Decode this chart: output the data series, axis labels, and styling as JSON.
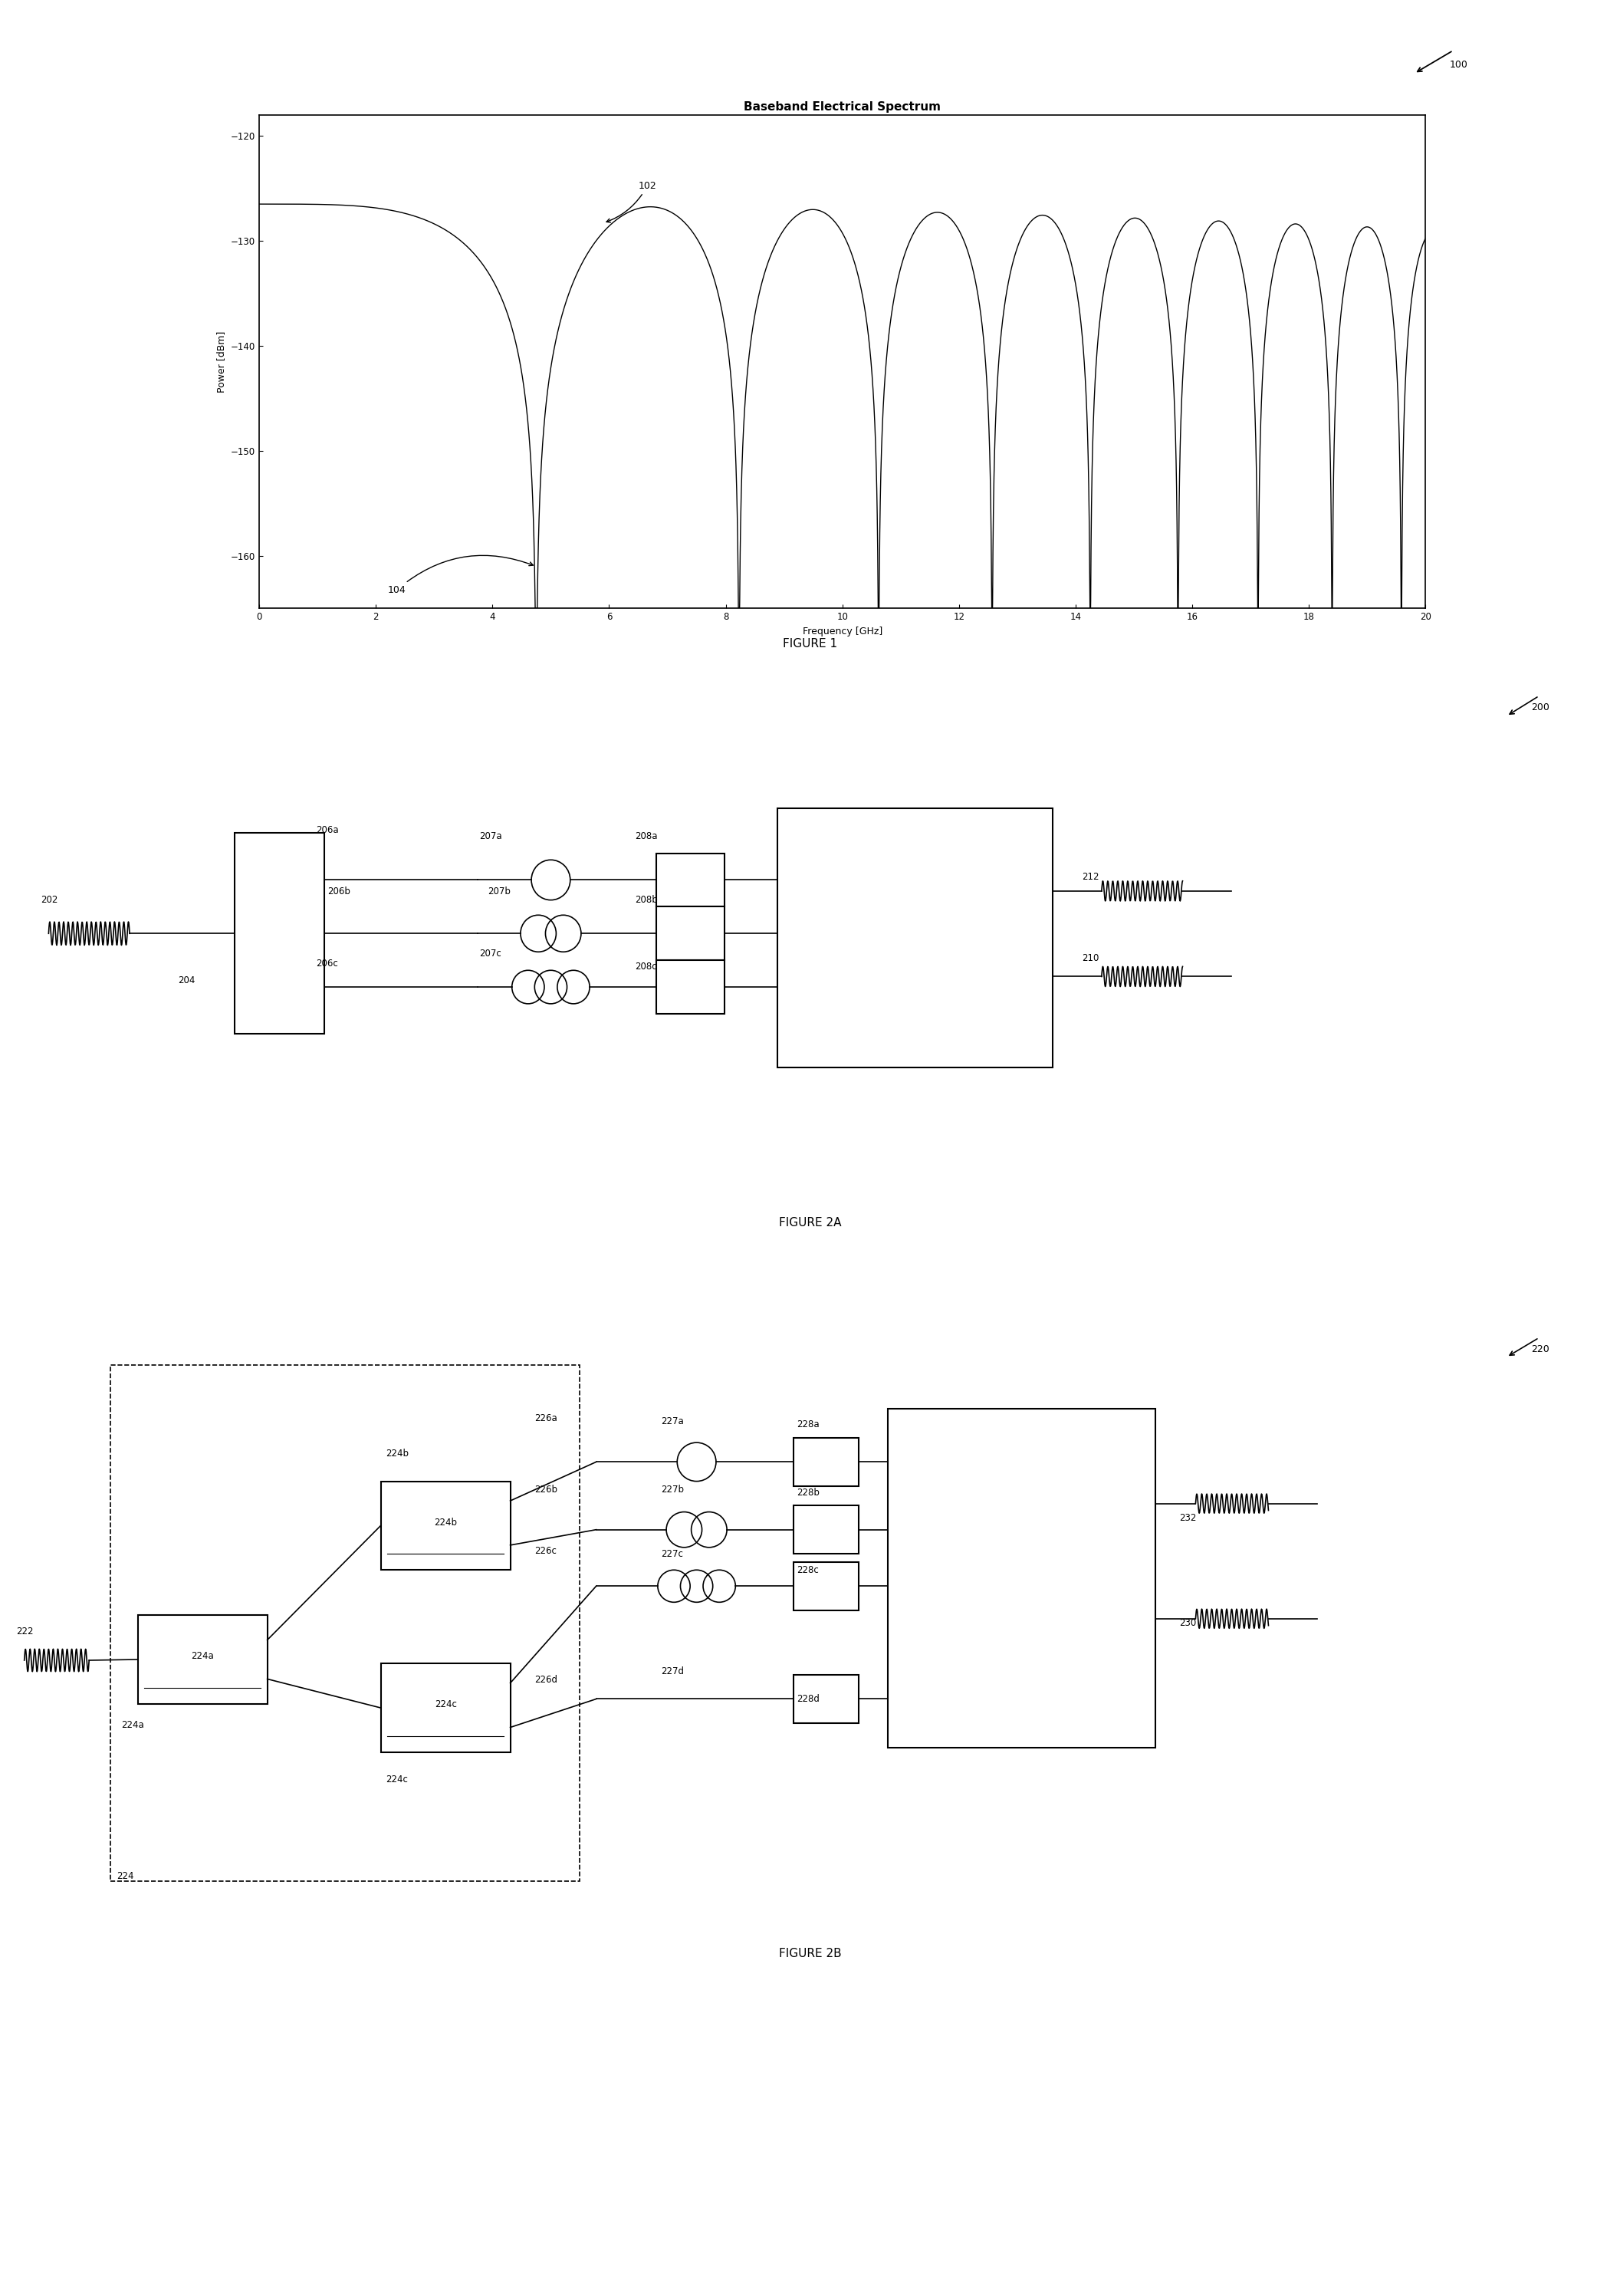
{
  "fig1": {
    "title": "Baseband Electrical Spectrum",
    "xlabel": "Frequency [GHz]",
    "ylabel": "Power [dBm]",
    "xlim": [
      0,
      20
    ],
    "ylim": [
      -165,
      -118
    ],
    "yticks": [
      -120,
      -130,
      -140,
      -150,
      -160
    ],
    "xticks": [
      0,
      2,
      4,
      6,
      8,
      10,
      12,
      14,
      16,
      18,
      20
    ],
    "flat_level": -126.5,
    "null_freq": 4.75,
    "peak_level": -128.0,
    "null_depth": -165,
    "figure_label": "FIGURE 1",
    "corner_label": "100"
  },
  "background_color": "#ffffff"
}
